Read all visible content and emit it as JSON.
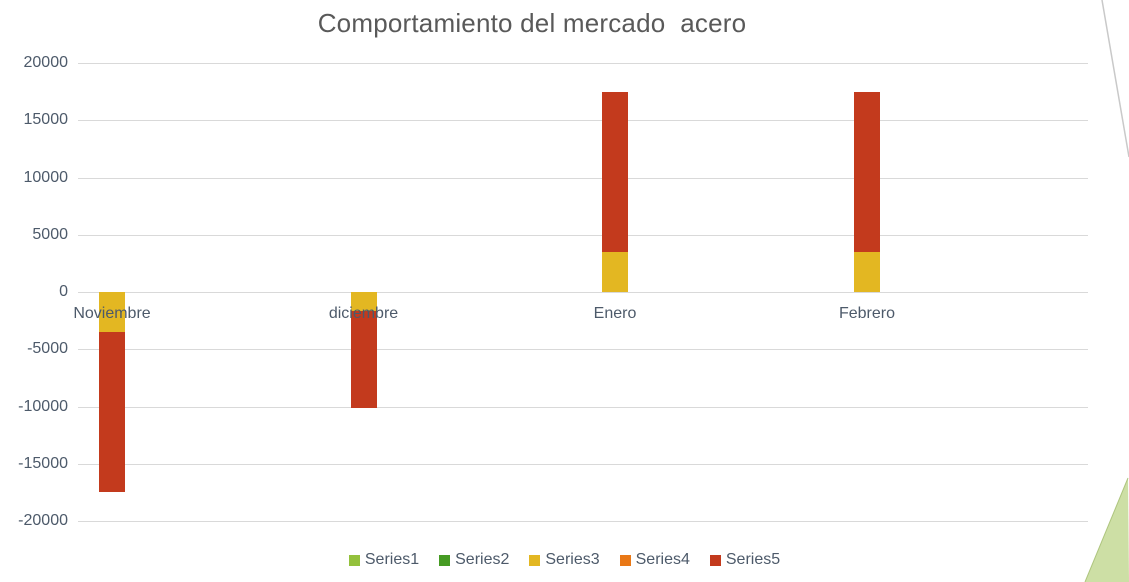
{
  "chart_data": {
    "type": "bar",
    "subtype": "stacked-column",
    "title": "Comportamiento del mercado  acero",
    "categories": [
      "Noviembre",
      "diciembre",
      "Enero",
      "Febrero"
    ],
    "series": [
      {
        "name": "Series1",
        "color": "#94c13c",
        "values": [
          0,
          0,
          0,
          0
        ]
      },
      {
        "name": "Series2",
        "color": "#469b23",
        "values": [
          0,
          0,
          0,
          0
        ]
      },
      {
        "name": "Series3",
        "color": "#e3b722",
        "values": [
          -3500,
          -1700,
          3500,
          3500
        ]
      },
      {
        "name": "Series4",
        "color": "#e97816",
        "values": [
          0,
          0,
          0,
          0
        ]
      },
      {
        "name": "Series5",
        "color": "#c33a1d",
        "values": [
          -14000,
          -8400,
          14000,
          14000
        ]
      }
    ],
    "y_axis": {
      "min": -20000,
      "max": 20000,
      "step": 5000,
      "ticks": [
        20000,
        15000,
        10000,
        5000,
        0,
        -5000,
        -10000,
        -15000,
        -20000
      ]
    },
    "grid": true,
    "legend_position": "bottom",
    "xlabel": "",
    "ylabel": ""
  },
  "styles": {
    "title_color": "#595959",
    "axis_text_color": "#4d5a6a",
    "gridline_color": "#d9d9d9",
    "background": "#ffffff"
  },
  "decor": {
    "diagonal_line_color": "#c9c9c9",
    "corner_triangle_fill": "#cddfa5",
    "corner_triangle_edge": "#aec57e"
  }
}
